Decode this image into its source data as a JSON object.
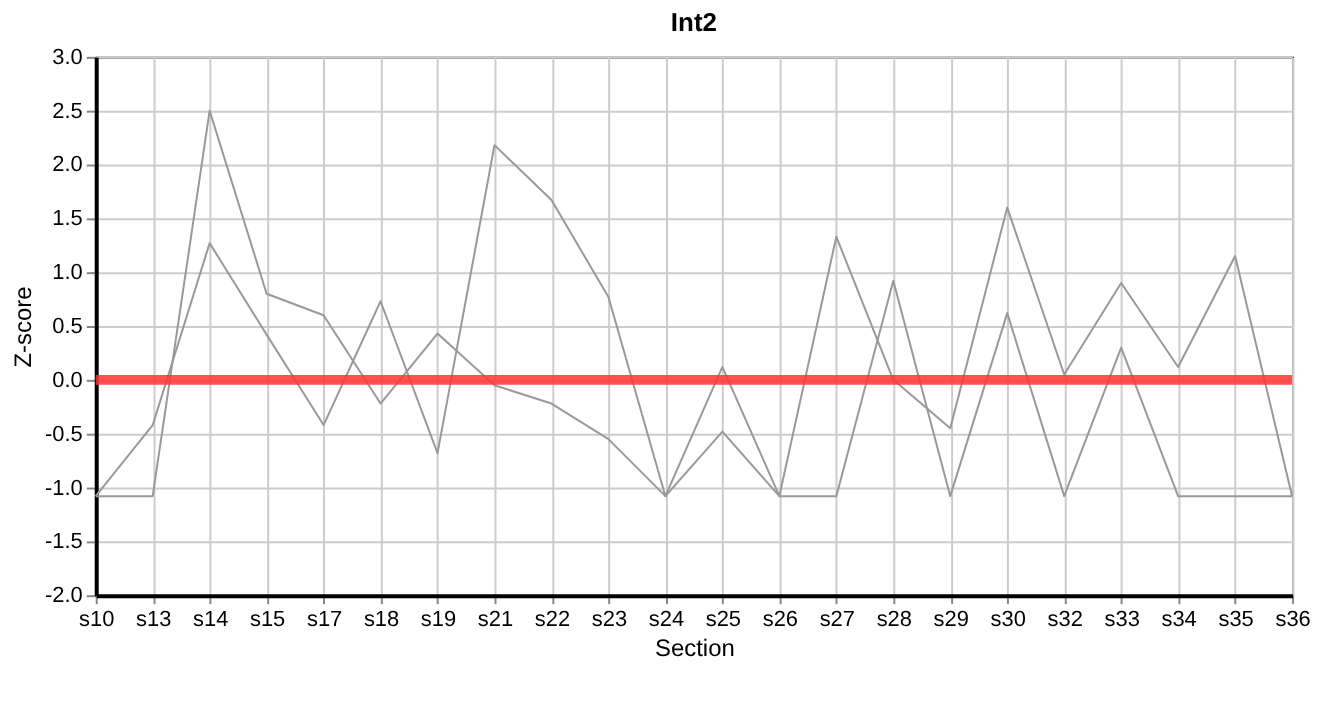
{
  "chart_data": {
    "type": "line",
    "title": "Int2",
    "xlabel": "Section",
    "ylabel": "Z-score",
    "categories": [
      "s10",
      "s13",
      "s14",
      "s15",
      "s17",
      "s18",
      "s19",
      "s21",
      "s22",
      "s23",
      "s24",
      "s25",
      "s26",
      "s27",
      "s28",
      "s29",
      "s30",
      "s32",
      "s33",
      "s34",
      "s35",
      "s36"
    ],
    "series": [
      {
        "color": "#999999",
        "values": [
          -1.08,
          -1.08,
          2.5,
          0.8,
          0.6,
          -0.22,
          0.43,
          -0.05,
          -0.22,
          -0.55,
          -1.08,
          -0.48,
          -1.08,
          -1.08,
          0.92,
          -1.08,
          0.62,
          -1.08,
          0.3,
          -1.08,
          -1.08,
          -1.08
        ]
      },
      {
        "color": "#999999",
        "values": [
          -1.08,
          -0.42,
          1.27,
          0.42,
          -0.42,
          0.73,
          -0.68,
          2.18,
          1.67,
          0.77,
          -1.08,
          0.12,
          -1.08,
          1.33,
          0.0,
          -0.45,
          1.6,
          0.05,
          0.9,
          0.12,
          1.15,
          -1.08
        ]
      }
    ],
    "ylim": [
      -2,
      3
    ],
    "yticks": [
      {
        "value": -2,
        "label": "-2.0"
      },
      {
        "value": -1.5,
        "label": "-1.5"
      },
      {
        "value": -1,
        "label": "-1.0"
      },
      {
        "value": -0.5,
        "label": "-0.5"
      },
      {
        "value": 0,
        "label": "0.0"
      },
      {
        "value": 0.5,
        "label": "0.5"
      },
      {
        "value": 1,
        "label": "1.0"
      },
      {
        "value": 1.5,
        "label": "1.5"
      },
      {
        "value": 2,
        "label": "2.0"
      },
      {
        "value": 2.5,
        "label": "2.5"
      },
      {
        "value": 3,
        "label": "3.0"
      }
    ],
    "ref_lines": [
      {
        "axis": "y",
        "value": 0,
        "color": "#ff3333"
      }
    ],
    "grid": true,
    "marker": "none",
    "line_style": "solid"
  }
}
